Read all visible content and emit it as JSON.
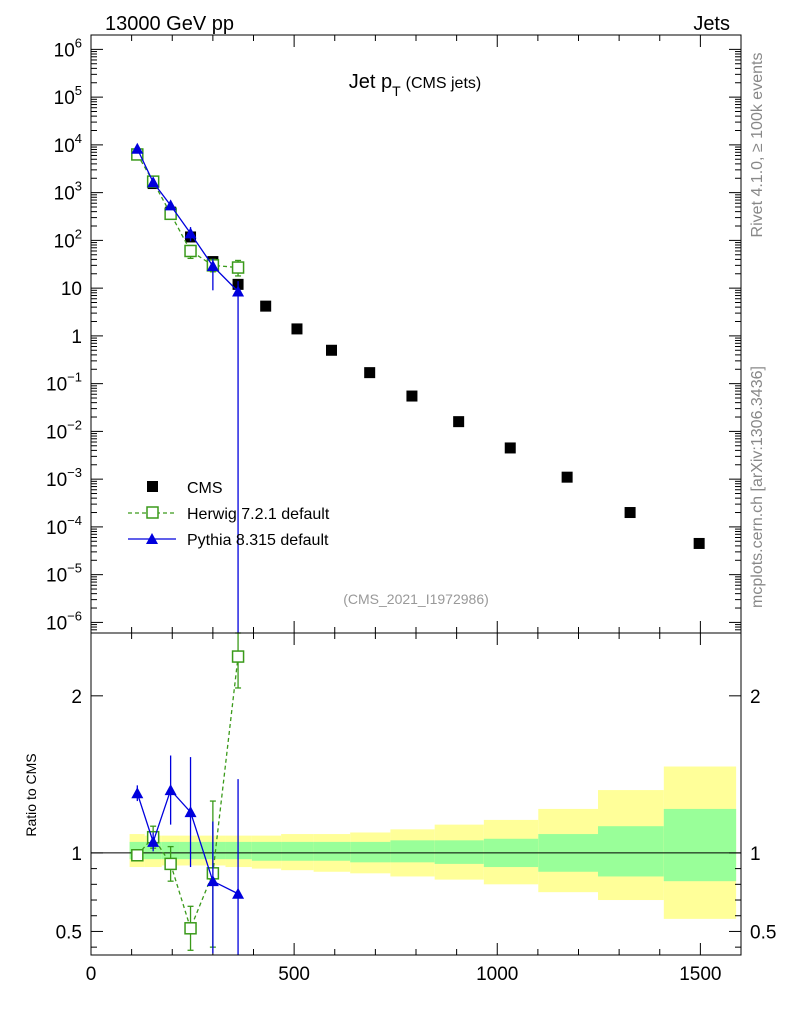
{
  "header": {
    "left": "13000 GeV pp",
    "right": "Jets"
  },
  "side_labels": {
    "rivet": "Rivet 4.1.0, ≥ 100k events",
    "mcplots": "mcplots.cern.ch [arXiv:1306.3436]"
  },
  "colors": {
    "cms": "#000000",
    "herwig": "#3a9a1a",
    "pythia": "#0000dd",
    "band_inner": "#99ff99",
    "band_outer": "#ffff99"
  },
  "chart_data": [
    {
      "type": "scatter",
      "panel": "main",
      "title": "Jet p",
      "title_sub": "T",
      "title_suffix": "(CMS jets)",
      "analysis_id": "(CMS_2021_I1972986)",
      "yscale": "log",
      "xlim": [
        0,
        1600
      ],
      "ylim": [
        6e-07,
        2000000.0
      ],
      "x_ticks": [
        0,
        500,
        1000,
        1500
      ],
      "y_ticks": [
        {
          "v": 1000000.0,
          "base": "10",
          "exp": "6"
        },
        {
          "v": 100000.0,
          "base": "10",
          "exp": "5"
        },
        {
          "v": 10000.0,
          "base": "10",
          "exp": "4"
        },
        {
          "v": 1000.0,
          "base": "10",
          "exp": "3"
        },
        {
          "v": 100.0,
          "base": "10",
          "exp": "2"
        },
        {
          "v": 10,
          "base": "10",
          "exp": ""
        },
        {
          "v": 1,
          "base": "1",
          "exp": ""
        },
        {
          "v": 0.1,
          "base": "10",
          "exp": "−1"
        },
        {
          "v": 0.01,
          "base": "10",
          "exp": "−2"
        },
        {
          "v": 0.001,
          "base": "10",
          "exp": "−3"
        },
        {
          "v": 0.0001,
          "base": "10",
          "exp": "−4"
        },
        {
          "v": 1e-05,
          "base": "10",
          "exp": "−5"
        },
        {
          "v": 1e-06,
          "base": "10",
          "exp": "−6"
        }
      ],
      "legend": [
        {
          "key": "cms",
          "label": "CMS"
        },
        {
          "key": "herwig",
          "label": "Herwig 7.2.1 default"
        },
        {
          "key": "pythia",
          "label": "Pythia 8.315 default"
        }
      ],
      "series": [
        {
          "name": "CMS",
          "key": "cms",
          "x": [
            114,
            153,
            196,
            245,
            300,
            362,
            430,
            507,
            592,
            686,
            790,
            905,
            1032,
            1172,
            1327,
            1497
          ],
          "y": [
            6400,
            1550,
            390,
            118,
            36,
            12,
            4.2,
            1.4,
            0.5,
            0.17,
            0.055,
            0.016,
            0.0045,
            0.0011,
            0.0002,
            4.5e-05
          ]
        },
        {
          "name": "Herwig 7.2.1 default",
          "key": "herwig",
          "x": [
            114,
            153,
            196,
            245,
            300,
            362
          ],
          "y": [
            6300,
            1700,
            360,
            60,
            30,
            27
          ],
          "err_hi": [
            6900,
            1900,
            410,
            78,
            40,
            38
          ],
          "err_lo": [
            5700,
            1500,
            310,
            42,
            22,
            18
          ]
        },
        {
          "name": "Pythia 8.315 default",
          "key": "pythia",
          "x": [
            114,
            153,
            196,
            245,
            300,
            362
          ],
          "y": [
            8300,
            1650,
            540,
            140,
            29,
            8.5
          ],
          "err_hi": [
            9000,
            1850,
            630,
            190,
            41,
            14
          ],
          "err_lo": [
            7600,
            1450,
            450,
            96,
            9,
            1e-07
          ]
        }
      ]
    },
    {
      "type": "scatter",
      "panel": "ratio",
      "ylabel": "Ratio to CMS",
      "xlim": [
        0,
        1600
      ],
      "ylim": [
        0.35,
        2.4
      ],
      "x_ticks": [
        0,
        500,
        1000,
        1500
      ],
      "y_ticks": [
        {
          "v": 0.5,
          "label": "0.5"
        },
        {
          "v": 1,
          "label": "1"
        },
        {
          "v": 2,
          "label": "2"
        }
      ],
      "band_edges": [
        95,
        132,
        174,
        219,
        272,
        331,
        396,
        468,
        548,
        638,
        737,
        846,
        967,
        1101,
        1248,
        1410,
        1588
      ],
      "band_inner_hi": [
        1.07,
        1.07,
        1.07,
        1.07,
        1.07,
        1.07,
        1.07,
        1.07,
        1.07,
        1.07,
        1.08,
        1.08,
        1.09,
        1.12,
        1.17,
        1.28
      ],
      "band_inner_lo": [
        0.96,
        0.96,
        0.96,
        0.96,
        0.96,
        0.96,
        0.95,
        0.95,
        0.95,
        0.94,
        0.94,
        0.93,
        0.91,
        0.88,
        0.85,
        0.82
      ],
      "band_outer_hi": [
        1.12,
        1.11,
        1.11,
        1.11,
        1.11,
        1.11,
        1.11,
        1.12,
        1.12,
        1.13,
        1.15,
        1.18,
        1.21,
        1.28,
        1.4,
        1.55
      ],
      "band_outer_lo": [
        0.91,
        0.91,
        0.92,
        0.92,
        0.92,
        0.91,
        0.9,
        0.89,
        0.88,
        0.87,
        0.85,
        0.83,
        0.8,
        0.75,
        0.7,
        0.58
      ],
      "series": [
        {
          "name": "Herwig 7.2.1 default",
          "key": "herwig",
          "x": [
            114,
            153,
            196,
            245,
            300,
            362
          ],
          "y": [
            0.985,
            1.1,
            0.93,
            0.52,
            0.87,
            2.25
          ],
          "err_hi": [
            1.02,
            1.17,
            1.04,
            0.66,
            1.33,
            2.45
          ],
          "err_lo": [
            0.95,
            1.03,
            0.82,
            0.38,
            0.4,
            2.05
          ]
        },
        {
          "name": "Pythia 8.315 default",
          "key": "pythia",
          "x": [
            114,
            153,
            196,
            245,
            300,
            362
          ],
          "y": [
            1.38,
            1.07,
            1.4,
            1.26,
            0.82,
            0.74
          ],
          "err_hi": [
            1.43,
            1.13,
            1.62,
            1.61,
            1.2,
            1.47
          ],
          "err_lo": [
            1.33,
            1.01,
            1.18,
            0.91,
            0.36,
            0.0
          ]
        }
      ]
    }
  ]
}
